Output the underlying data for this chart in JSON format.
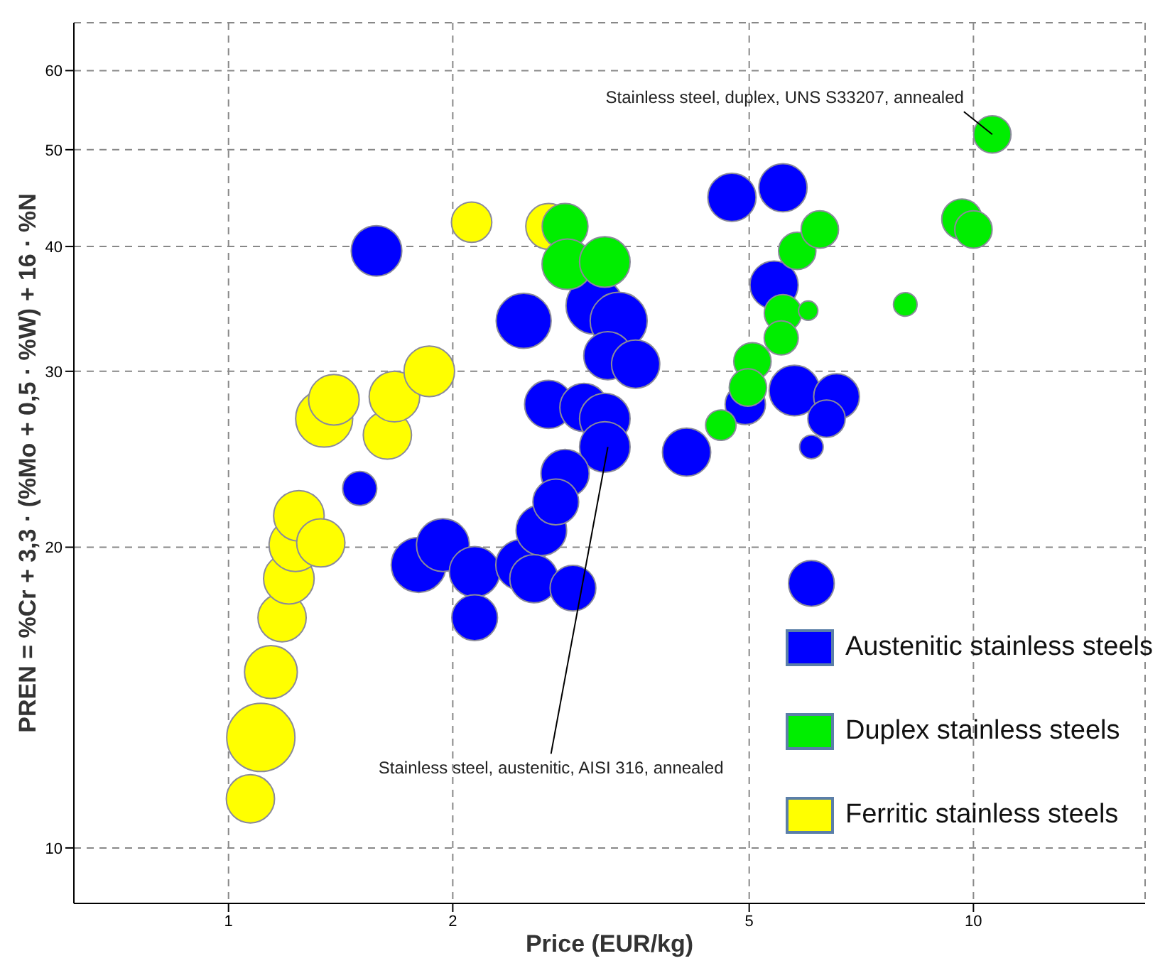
{
  "chart_data": {
    "type": "bubble",
    "xlabel": "Price (EUR/kg)",
    "ylabel": "PREN = %Cr + 3,3 · (%Mo + 0,5 · %W) + 16 · %N",
    "log": "xy",
    "xlim": [
      0.62,
      17
    ],
    "ylim": [
      8.8,
      67
    ],
    "xticks": [
      1,
      2,
      5,
      10
    ],
    "yticks": [
      10,
      20,
      30,
      40,
      50,
      60
    ],
    "grid": true,
    "legend": "bottom right",
    "series": [
      {
        "name": "Austenitic stainless steels",
        "color": "#0000ff",
        "x": [
          1.58,
          1.5,
          2.49,
          3.1,
          3.34,
          3.23,
          3.52,
          2.69,
          3.0,
          3.2,
          3.2,
          2.83,
          1.8,
          1.94,
          2.14,
          2.14,
          2.47,
          2.63,
          2.57,
          2.9,
          2.75,
          4.74,
          5.55,
          5.4,
          5.75,
          6.55,
          6.35,
          6.06,
          4.94,
          4.12,
          6.06
        ],
        "values": [
          39.6,
          22.9,
          33.7,
          34.9,
          33.7,
          31.1,
          30.5,
          27.8,
          27.6,
          26.9,
          25.2,
          23.7,
          19.2,
          20.1,
          18.9,
          17.0,
          19.2,
          20.8,
          18.6,
          18.2,
          22.2,
          44.8,
          45.8,
          36.6,
          28.7,
          28.3,
          26.9,
          25.2,
          27.8,
          24.9,
          18.4
        ],
        "sizes": [
          0.55,
          0.25,
          0.65,
          0.7,
          0.7,
          0.5,
          0.5,
          0.5,
          0.5,
          0.55,
          0.55,
          0.5,
          0.65,
          0.6,
          0.55,
          0.45,
          0.55,
          0.55,
          0.5,
          0.45,
          0.45,
          0.5,
          0.5,
          0.5,
          0.55,
          0.45,
          0.3,
          0.12,
          0.35,
          0.5,
          0.45
        ]
      },
      {
        "name": "Duplex stainless steels",
        "color": "#00ee00",
        "x": [
          2.83,
          2.85,
          3.2,
          10.6,
          9.65,
          10.0,
          5.8,
          6.22,
          5.55,
          5.52,
          6.0,
          8.1,
          5.05,
          4.98,
          4.58
        ],
        "values": [
          41.9,
          38.4,
          38.6,
          51.8,
          42.6,
          41.6,
          39.6,
          41.6,
          34.3,
          32.4,
          34.5,
          35.0,
          30.7,
          28.9,
          26.5
        ],
        "sizes": [
          0.45,
          0.55,
          0.55,
          0.3,
          0.35,
          0.3,
          0.3,
          0.3,
          0.3,
          0.25,
          0.08,
          0.12,
          0.3,
          0.3,
          0.2
        ]
      },
      {
        "name": "Ferritic stainless steels",
        "color": "#ffff00",
        "x": [
          1.07,
          1.105,
          1.14,
          1.18,
          1.205,
          1.23,
          1.243,
          1.33,
          1.344,
          1.385,
          1.634,
          1.67,
          1.86,
          2.12,
          2.69
        ],
        "values": [
          11.2,
          12.9,
          15.0,
          17.0,
          18.6,
          20.1,
          21.5,
          20.2,
          26.9,
          28.1,
          25.9,
          28.3,
          30.0,
          42.3,
          41.9
        ],
        "sizes": [
          0.5,
          1.0,
          0.6,
          0.5,
          0.55,
          0.6,
          0.55,
          0.5,
          0.7,
          0.55,
          0.5,
          0.55,
          0.55,
          0.35,
          0.45
        ]
      }
    ],
    "annotations": [
      {
        "text": "Stainless steel, duplex, UNS S33207, annealed",
        "x": 10.6,
        "y": 51.8
      },
      {
        "text": "Stainless steel, austenitic, AISI 316, annealed",
        "x": 3.23,
        "y": 25.2
      }
    ]
  }
}
